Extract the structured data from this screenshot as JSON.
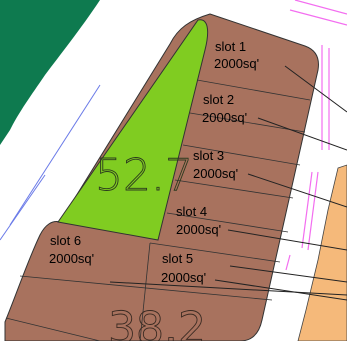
{
  "map": {
    "large_area_labels": [
      "52.7",
      "38.2"
    ],
    "plots": [
      {
        "name": "slot 1",
        "area": "2000sq'"
      },
      {
        "name": "slot 2",
        "area": "2000sq'"
      },
      {
        "name": "slot 3",
        "area": "2000sq'"
      },
      {
        "name": "slot 4",
        "area": "2000sq'"
      },
      {
        "name": "slot 5",
        "area": "2000sq'"
      },
      {
        "name": "slot 6",
        "area": "2000sq'"
      }
    ],
    "colors": {
      "plot_fill": "#a8725e",
      "green_parcel": "#80cc21",
      "dark_green": "#0e7a4f",
      "orange_parcel": "#f5b97a",
      "road_line": "#6a7ae8",
      "magenta_line": "#f36ef0",
      "boundary": "#333333"
    }
  }
}
